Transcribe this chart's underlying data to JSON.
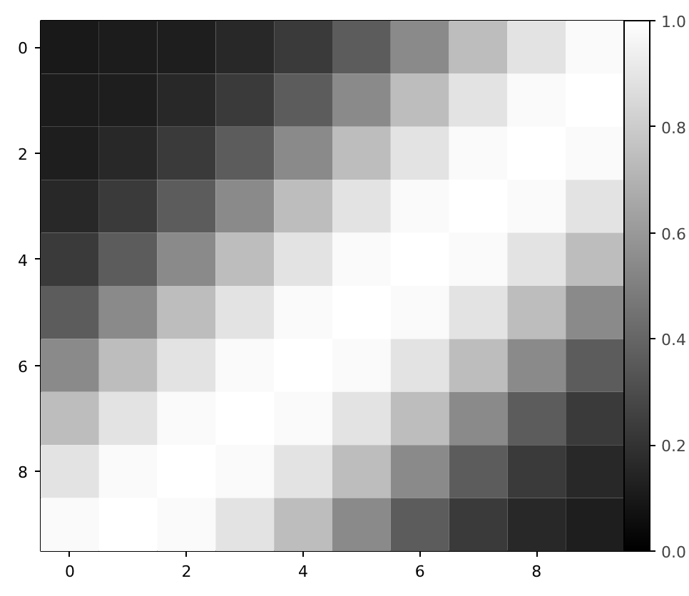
{
  "chart_data": {
    "type": "heatmap",
    "categories": [
      "0",
      null,
      "2",
      null,
      "4",
      null,
      "6",
      null,
      "8",
      null
    ],
    "y_categories": [
      "0",
      null,
      "2",
      null,
      "4",
      null,
      "6",
      null,
      "8",
      null
    ],
    "cells": [
      [
        0.1,
        0.11,
        0.12,
        0.16,
        0.23,
        0.36,
        0.54,
        0.74,
        0.89,
        0.98
      ],
      [
        0.11,
        0.12,
        0.16,
        0.23,
        0.36,
        0.54,
        0.74,
        0.89,
        0.98,
        1.0
      ],
      [
        0.12,
        0.16,
        0.23,
        0.36,
        0.54,
        0.74,
        0.89,
        0.98,
        1.0,
        0.98
      ],
      [
        0.16,
        0.23,
        0.36,
        0.54,
        0.74,
        0.89,
        0.98,
        1.0,
        0.98,
        0.89
      ],
      [
        0.23,
        0.36,
        0.54,
        0.74,
        0.89,
        0.98,
        1.0,
        0.98,
        0.89,
        0.74
      ],
      [
        0.36,
        0.54,
        0.74,
        0.89,
        0.98,
        1.0,
        0.98,
        0.89,
        0.74,
        0.54
      ],
      [
        0.54,
        0.74,
        0.89,
        0.98,
        1.0,
        0.98,
        0.89,
        0.74,
        0.54,
        0.36
      ],
      [
        0.74,
        0.89,
        0.98,
        1.0,
        0.98,
        0.89,
        0.74,
        0.54,
        0.36,
        0.23
      ],
      [
        0.89,
        0.98,
        1.0,
        0.98,
        0.89,
        0.74,
        0.54,
        0.36,
        0.23,
        0.16
      ],
      [
        0.98,
        1.0,
        0.98,
        0.89,
        0.74,
        0.54,
        0.36,
        0.23,
        0.16,
        0.12
      ]
    ],
    "clim": [
      0,
      1
    ],
    "cticks": [
      {
        "value": 0,
        "label": "0.0"
      },
      {
        "value": 0.2,
        "label": "0.2"
      },
      {
        "value": 0.4,
        "label": "0.4"
      },
      {
        "value": 0.6,
        "label": "0.6"
      },
      {
        "value": 0.8,
        "label": "0.8"
      },
      {
        "value": 1,
        "label": "1.0"
      }
    ]
  }
}
